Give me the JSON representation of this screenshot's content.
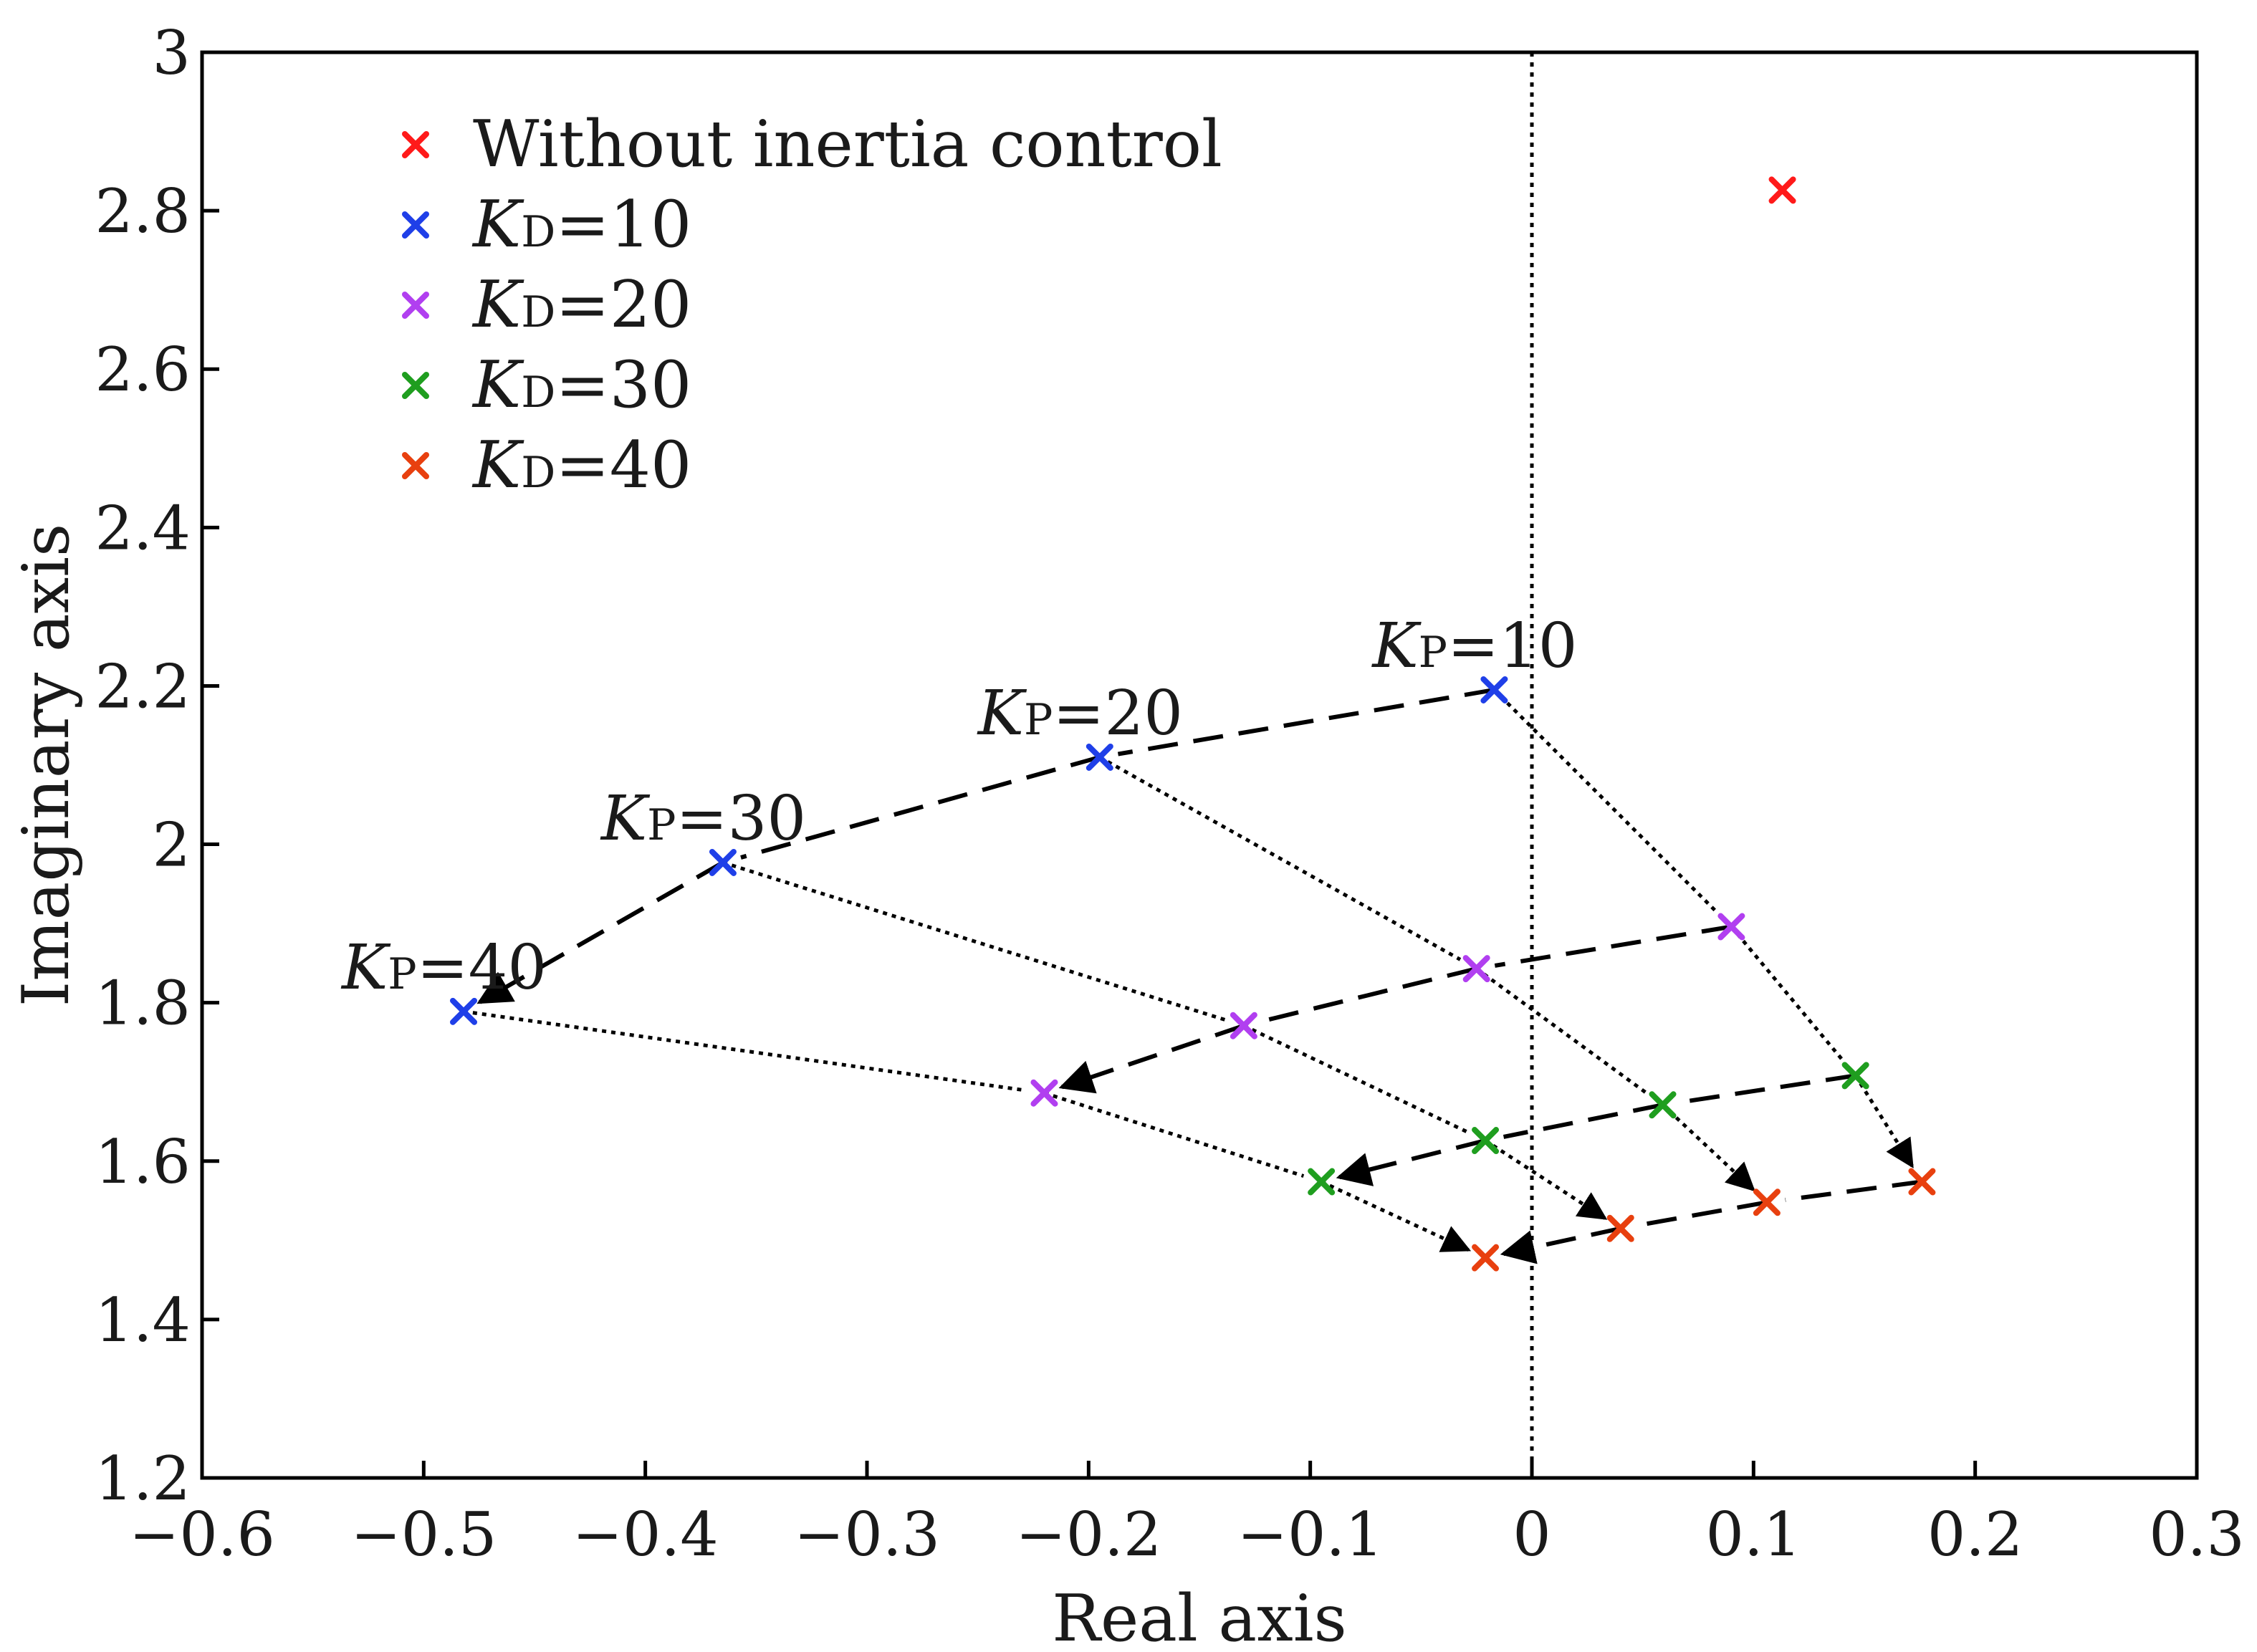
{
  "chart_data": {
    "type": "scatter",
    "title": "",
    "xlabel": "Real axis",
    "ylabel": "Imaginary axis",
    "xlim": [
      -0.6,
      0.3
    ],
    "ylim": [
      1.2,
      3.0
    ],
    "xticks": [
      -0.6,
      -0.5,
      -0.4,
      -0.3,
      -0.2,
      -0.1,
      0,
      0.1,
      0.2,
      0.3
    ],
    "xtick_labels": [
      "−0.6",
      "−0.5",
      "−0.4",
      "−0.3",
      "−0.2",
      "−0.1",
      "0",
      "0.1",
      "0.2",
      "0.3"
    ],
    "yticks": [
      1.2,
      1.4,
      1.6,
      1.8,
      2.0,
      2.2,
      2.4,
      2.6,
      2.8,
      3.0
    ],
    "ytick_labels": [
      "1.2",
      "1.4",
      "1.6",
      "1.8",
      "2",
      "2.2",
      "2.4",
      "2.6",
      "2.8",
      "3"
    ],
    "grid": false,
    "reference_line": {
      "x": 0,
      "style": "dotted"
    },
    "legend_position": "top-left",
    "series": [
      {
        "name": "Without inertia control",
        "color": "#ff1a1a",
        "points": [
          [
            0.113,
            2.826
          ]
        ]
      },
      {
        "name": "KD=10",
        "legend_symbol": "K",
        "legend_sub": "D",
        "legend_value": "=10",
        "color": "#1f3fe8",
        "points": [
          [
            -0.017,
            2.195
          ],
          [
            -0.195,
            2.11
          ],
          [
            -0.365,
            1.977
          ],
          [
            -0.482,
            1.789
          ]
        ]
      },
      {
        "name": "KD=20",
        "legend_symbol": "K",
        "legend_sub": "D",
        "legend_value": "=20",
        "color": "#b13ff0",
        "points": [
          [
            0.09,
            1.896
          ],
          [
            -0.025,
            1.843
          ],
          [
            -0.13,
            1.771
          ],
          [
            -0.22,
            1.686
          ]
        ]
      },
      {
        "name": "KD=30",
        "legend_symbol": "K",
        "legend_sub": "D",
        "legend_value": "=30",
        "color": "#1f9e1f",
        "points": [
          [
            0.146,
            1.708
          ],
          [
            0.059,
            1.671
          ],
          [
            -0.021,
            1.626
          ],
          [
            -0.095,
            1.574
          ]
        ]
      },
      {
        "name": "KD=40",
        "legend_symbol": "K",
        "legend_sub": "D",
        "legend_value": "=40",
        "color": "#e8400f",
        "points": [
          [
            0.176,
            1.574
          ],
          [
            0.106,
            1.548
          ],
          [
            0.04,
            1.515
          ],
          [
            -0.021,
            1.478
          ]
        ]
      }
    ],
    "paths": [
      {
        "style": "dashed",
        "arrow": true,
        "points": [
          [
            -0.017,
            2.195
          ],
          [
            -0.195,
            2.11
          ],
          [
            -0.365,
            1.977
          ],
          [
            -0.482,
            1.789
          ]
        ]
      },
      {
        "style": "dashed",
        "arrow": true,
        "points": [
          [
            0.09,
            1.896
          ],
          [
            -0.025,
            1.843
          ],
          [
            -0.13,
            1.771
          ],
          [
            -0.22,
            1.686
          ]
        ]
      },
      {
        "style": "dashed",
        "arrow": true,
        "points": [
          [
            0.146,
            1.708
          ],
          [
            0.059,
            1.671
          ],
          [
            -0.021,
            1.626
          ],
          [
            -0.095,
            1.574
          ]
        ]
      },
      {
        "style": "dashed",
        "arrow": true,
        "points": [
          [
            0.176,
            1.574
          ],
          [
            0.106,
            1.548
          ],
          [
            0.04,
            1.515
          ],
          [
            -0.021,
            1.478
          ]
        ]
      },
      {
        "style": "dotted",
        "arrow": true,
        "points": [
          [
            -0.017,
            2.195
          ],
          [
            0.09,
            1.896
          ],
          [
            0.146,
            1.708
          ],
          [
            0.176,
            1.574
          ]
        ]
      },
      {
        "style": "dotted",
        "arrow": true,
        "points": [
          [
            -0.195,
            2.11
          ],
          [
            -0.025,
            1.843
          ],
          [
            0.059,
            1.671
          ],
          [
            0.106,
            1.548
          ]
        ]
      },
      {
        "style": "dotted",
        "arrow": true,
        "points": [
          [
            -0.365,
            1.977
          ],
          [
            -0.13,
            1.771
          ],
          [
            -0.021,
            1.626
          ],
          [
            0.04,
            1.515
          ]
        ]
      },
      {
        "style": "dotted",
        "arrow": true,
        "points": [
          [
            -0.482,
            1.789
          ],
          [
            -0.22,
            1.686
          ],
          [
            -0.095,
            1.574
          ],
          [
            -0.021,
            1.478
          ]
        ]
      }
    ],
    "annotations": [
      {
        "symbol": "K",
        "sub": "P",
        "value": "=10",
        "x": -0.017,
        "y": 2.195
      },
      {
        "symbol": "K",
        "sub": "P",
        "value": "=20",
        "x": -0.195,
        "y": 2.11
      },
      {
        "symbol": "K",
        "sub": "P",
        "value": "=30",
        "x": -0.365,
        "y": 1.977
      },
      {
        "symbol": "K",
        "sub": "P",
        "value": "=40",
        "x": -0.482,
        "y": 1.789
      }
    ]
  }
}
